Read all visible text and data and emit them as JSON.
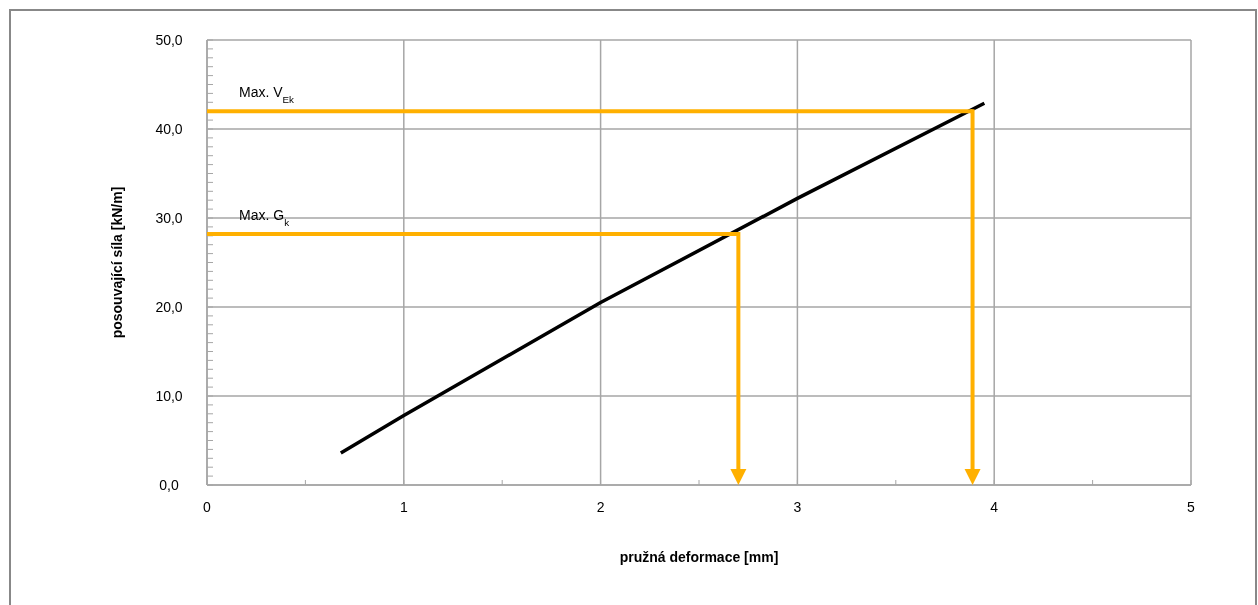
{
  "chart_data": {
    "type": "line",
    "xlabel": "pružná deformace [mm]",
    "ylabel": "posouvající síla [kN/m]",
    "xlim": [
      0,
      5
    ],
    "xticks": [
      0,
      1,
      2,
      3,
      4,
      5
    ],
    "ylim": [
      0,
      50
    ],
    "yticks": [
      {
        "value": 0,
        "label": "0,0"
      },
      {
        "value": 10,
        "label": "10,0"
      },
      {
        "value": 20,
        "label": "20,0"
      },
      {
        "value": 30,
        "label": "30,0"
      },
      {
        "value": 40,
        "label": "40,0"
      },
      {
        "value": 50,
        "label": "50,0"
      }
    ],
    "grid": true,
    "marker": "none",
    "line_style": "solid",
    "ref_lines": [
      {
        "axis": "y",
        "value": 28.2,
        "label": "Max. G$_{k}$",
        "color": "#ffb000"
      },
      {
        "axis": "x",
        "value": 2.7,
        "color": "#ffb000"
      },
      {
        "axis": "y",
        "value": 42,
        "label": "Max. V$_{Ek}$",
        "color": "#ffb000"
      },
      {
        "axis": "x",
        "value": 3.89,
        "color": "#ffb000"
      }
    ],
    "series": [
      {
        "color": "#000000",
        "x": [
          0.68,
          1,
          2,
          3,
          3.95
        ],
        "values": [
          3.6,
          7.8,
          20.5,
          32.2,
          42.9
        ]
      }
    ]
  }
}
